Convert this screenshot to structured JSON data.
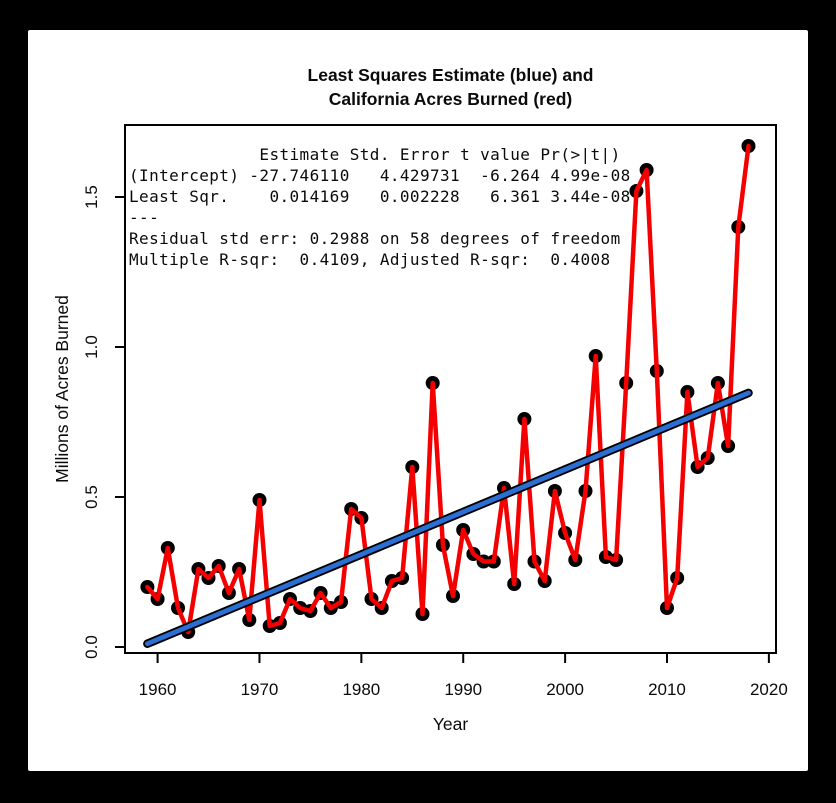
{
  "page": {
    "background": "#000000",
    "card_background": "#ffffff"
  },
  "title": {
    "line1": "Least Squares Estimate (blue) and",
    "line2": "California Acres Burned (red)"
  },
  "regression_summary": "             Estimate Std. Error t value Pr(>|t|)\n(Intercept) -27.746110   4.429731  -6.264 4.99e-08\nLeast Sqr.    0.014169   0.002228   6.361 3.44e-08\n---\nResidual std err: 0.2988 on 58 degrees of freedom\nMultiple R-sqr:  0.4109, Adjusted R-sqr:  0.4008",
  "chart_data": {
    "type": "line",
    "title": "Least Squares Estimate (blue) and California Acres Burned (red)",
    "xlabel": "Year",
    "ylabel": "Millions of Acres Burned",
    "xlim": [
      1956.8,
      2020.7
    ],
    "ylim": [
      -0.02,
      1.74
    ],
    "x_ticks": [
      1960,
      1970,
      1980,
      1990,
      2000,
      2010,
      2020
    ],
    "y_ticks": [
      0,
      0.5,
      1,
      1.5
    ],
    "grid": false,
    "legend_position": "none",
    "frame_color": "#000000",
    "series": [
      {
        "name": "California Acres Burned",
        "type": "line+markers",
        "color": "#F50000",
        "marker_color": "#000000",
        "x": [
          1959,
          1960,
          1961,
          1962,
          1963,
          1964,
          1965,
          1966,
          1967,
          1968,
          1969,
          1970,
          1971,
          1972,
          1973,
          1974,
          1975,
          1976,
          1977,
          1978,
          1979,
          1980,
          1981,
          1982,
          1983,
          1984,
          1985,
          1986,
          1987,
          1988,
          1989,
          1990,
          1991,
          1992,
          1993,
          1994,
          1995,
          1996,
          1997,
          1998,
          1999,
          2000,
          2001,
          2002,
          2003,
          2004,
          2005,
          2006,
          2007,
          2008,
          2009,
          2010,
          2011,
          2012,
          2013,
          2014,
          2015,
          2016,
          2017,
          2018
        ],
        "values": [
          0.2,
          0.16,
          0.33,
          0.13,
          0.05,
          0.26,
          0.23,
          0.27,
          0.18,
          0.26,
          0.09,
          0.49,
          0.07,
          0.08,
          0.16,
          0.13,
          0.12,
          0.18,
          0.13,
          0.15,
          0.46,
          0.43,
          0.16,
          0.13,
          0.22,
          0.23,
          0.6,
          0.11,
          0.88,
          0.34,
          0.17,
          0.39,
          0.31,
          0.285,
          0.285,
          0.53,
          0.21,
          0.76,
          0.285,
          0.22,
          0.52,
          0.38,
          0.29,
          0.52,
          0.97,
          0.3,
          0.29,
          0.88,
          1.52,
          1.59,
          0.92,
          0.13,
          0.23,
          0.85,
          0.6,
          0.63,
          0.88,
          0.67,
          1.4,
          1.67
        ]
      },
      {
        "name": "Least Squares Estimate",
        "type": "regression-line",
        "color": "#2B6FD4",
        "casing_color": "#000000",
        "intercept": -27.74611,
        "slope": 0.014169,
        "x_range": [
          1959,
          2018
        ]
      }
    ]
  }
}
